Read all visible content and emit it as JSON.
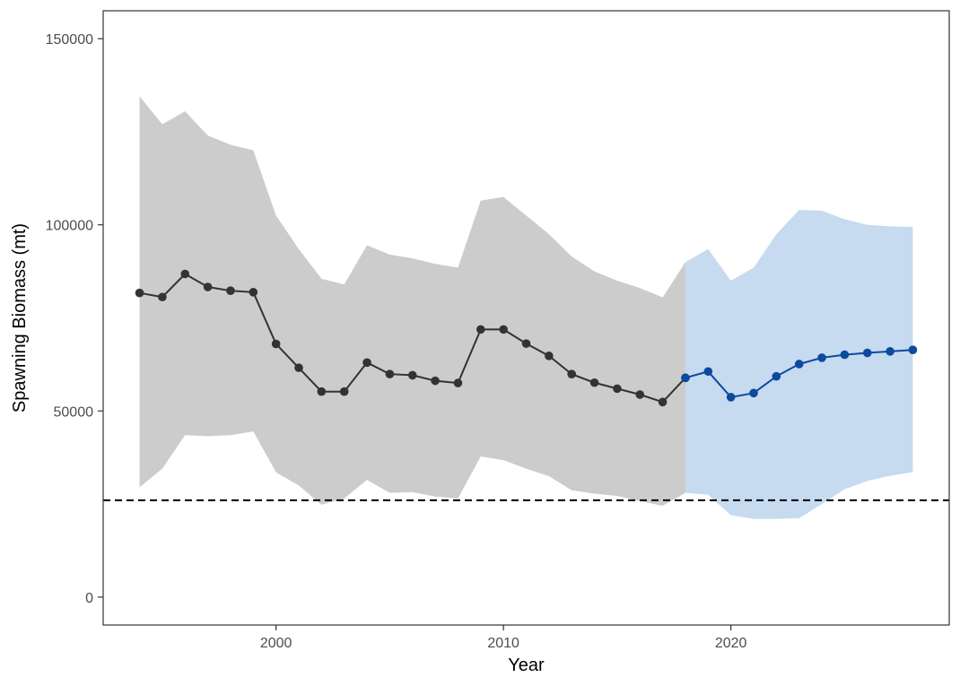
{
  "chart_data": {
    "type": "line",
    "title": "",
    "xlabel": "Year",
    "ylabel": "Spawning Biomass (mt)",
    "xlim": [
      1992.4,
      2029.6
    ],
    "ylim": [
      -7500,
      157500
    ],
    "x_ticks": [
      2000,
      2010,
      2020
    ],
    "y_ticks": [
      0,
      50000,
      100000,
      150000
    ],
    "x_tick_labels": [
      "2000",
      "2010",
      "2020"
    ],
    "y_tick_labels": [
      "0",
      "50000",
      "100000",
      "150000"
    ],
    "grid": false,
    "legend": "none",
    "reference_line": {
      "y": 26000,
      "style": "dashed",
      "color": "#000000"
    },
    "colors": {
      "historical_line": "#333333",
      "historical_band": "#cccccc",
      "projection_line": "#0b4a9e",
      "projection_band": "#c6daf0"
    },
    "series": [
      {
        "x": [
          1994,
          1995,
          1996,
          1997,
          1998,
          1999,
          2000,
          2001,
          2002,
          2003,
          2004,
          2005,
          2006,
          2007,
          2008,
          2009,
          2010,
          2011,
          2012,
          2013,
          2014,
          2015,
          2016,
          2017,
          2018
        ],
        "y": [
          81700,
          80600,
          86800,
          83300,
          82300,
          81900,
          68000,
          61600,
          55200,
          55200,
          63000,
          59900,
          59600,
          58100,
          57500,
          71900,
          71900,
          68100,
          64800,
          59900,
          57600,
          56000,
          54400,
          52400,
          58900
        ],
        "lower": [
          29500,
          34500,
          43500,
          43200,
          43500,
          44500,
          33500,
          30000,
          24800,
          26500,
          31500,
          28000,
          28200,
          27000,
          26500,
          37800,
          36800,
          34500,
          32500,
          28700,
          27800,
          27200,
          25800,
          24500,
          28000
        ],
        "upper": [
          134500,
          127000,
          130500,
          124000,
          121500,
          120000,
          102500,
          93500,
          85500,
          84000,
          94500,
          92000,
          91000,
          89500,
          88500,
          106500,
          107500,
          102500,
          97500,
          91500,
          87500,
          85000,
          83000,
          80500,
          90000
        ]
      },
      {
        "x": [
          2018,
          2019,
          2020,
          2021,
          2022,
          2023,
          2024,
          2025,
          2026,
          2027,
          2028
        ],
        "y": [
          58900,
          60600,
          53700,
          54800,
          59300,
          62600,
          64300,
          65100,
          65600,
          66000,
          66400
        ],
        "lower": [
          28000,
          27500,
          22000,
          21000,
          21000,
          21200,
          25000,
          29000,
          31200,
          32600,
          33600
        ],
        "upper": [
          90000,
          93500,
          85000,
          88500,
          97500,
          104000,
          103800,
          101500,
          100000,
          99600,
          99400
        ]
      }
    ]
  }
}
